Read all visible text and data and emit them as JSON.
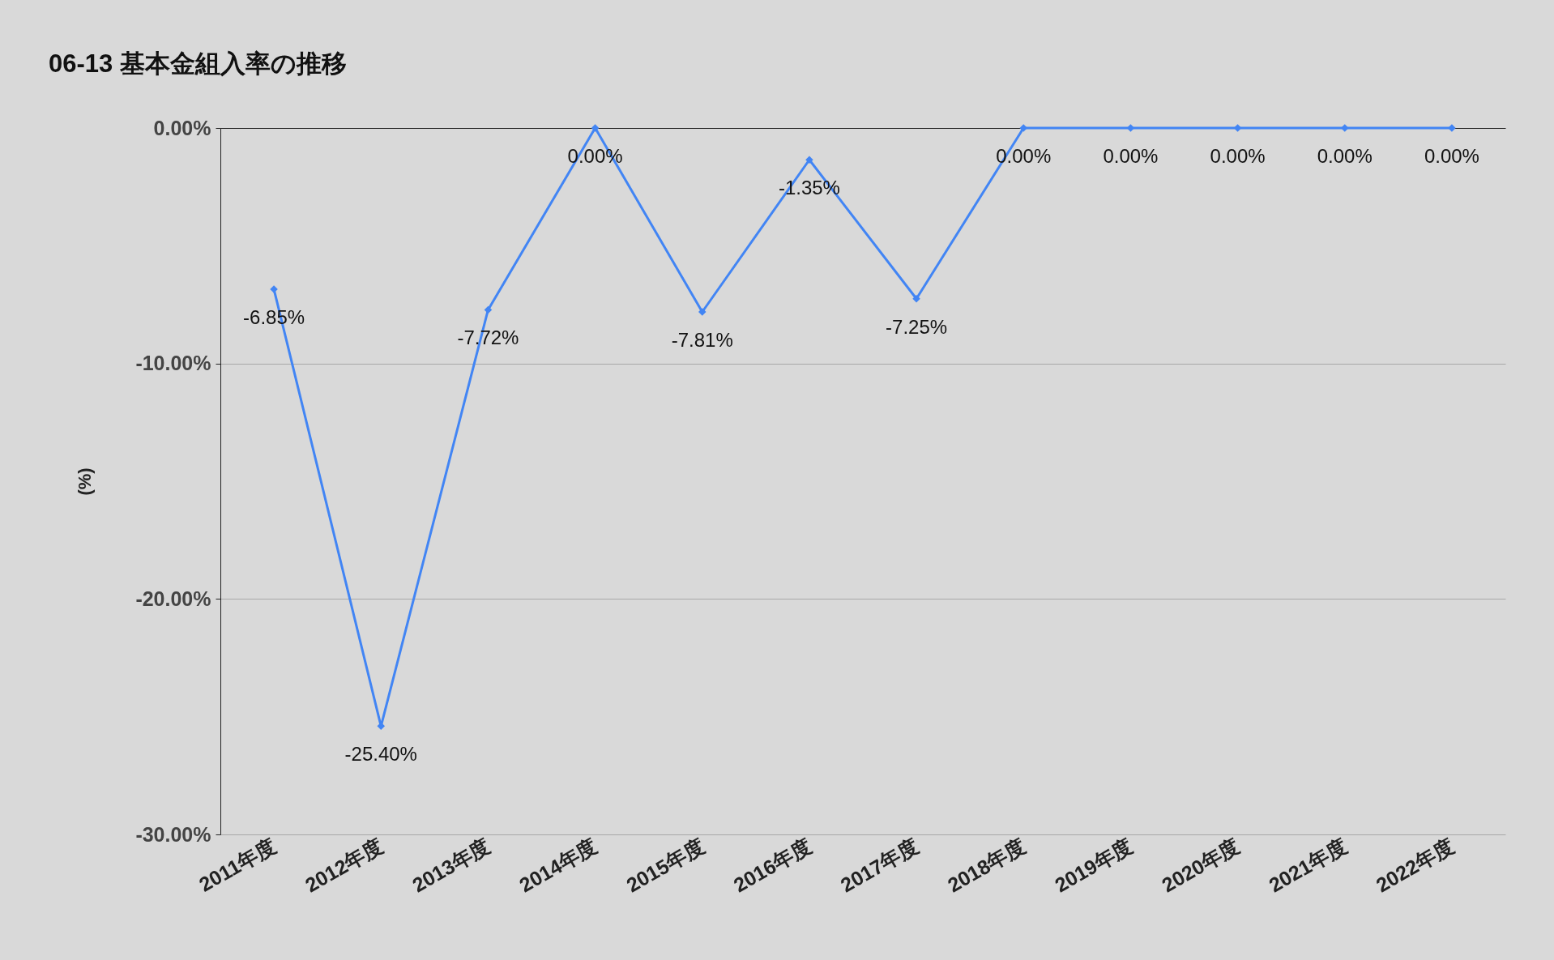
{
  "chart_data": {
    "type": "line",
    "title": "06-13 基本金組入率の推移",
    "ylabel": "(%)",
    "categories": [
      "2011年度",
      "2012年度",
      "2013年度",
      "2014年度",
      "2015年度",
      "2016年度",
      "2017年度",
      "2018年度",
      "2019年度",
      "2020年度",
      "2021年度",
      "2022年度"
    ],
    "series": [
      {
        "color": "#4285f4",
        "values": [
          -6.85,
          -25.4,
          -7.72,
          0,
          -7.81,
          -1.35,
          -7.25,
          0,
          0,
          0,
          0,
          0
        ],
        "value_labels": [
          "-6.85%",
          "-25.40%",
          "-7.72%",
          "0.00%",
          "-7.81%",
          "-1.35%",
          "-7.25%",
          "0.00%",
          "0.00%",
          "0.00%",
          "0.00%",
          "0.00%"
        ]
      }
    ],
    "ylim": [
      -30,
      0
    ],
    "yticks": [
      {
        "value": 0,
        "label": "0.00%"
      },
      {
        "value": -10,
        "label": "-10.00%"
      },
      {
        "value": -20,
        "label": "-20.00%"
      },
      {
        "value": -30,
        "label": "-30.00%"
      }
    ],
    "grid": "y",
    "marker": "diamond",
    "line_style": "solid"
  }
}
